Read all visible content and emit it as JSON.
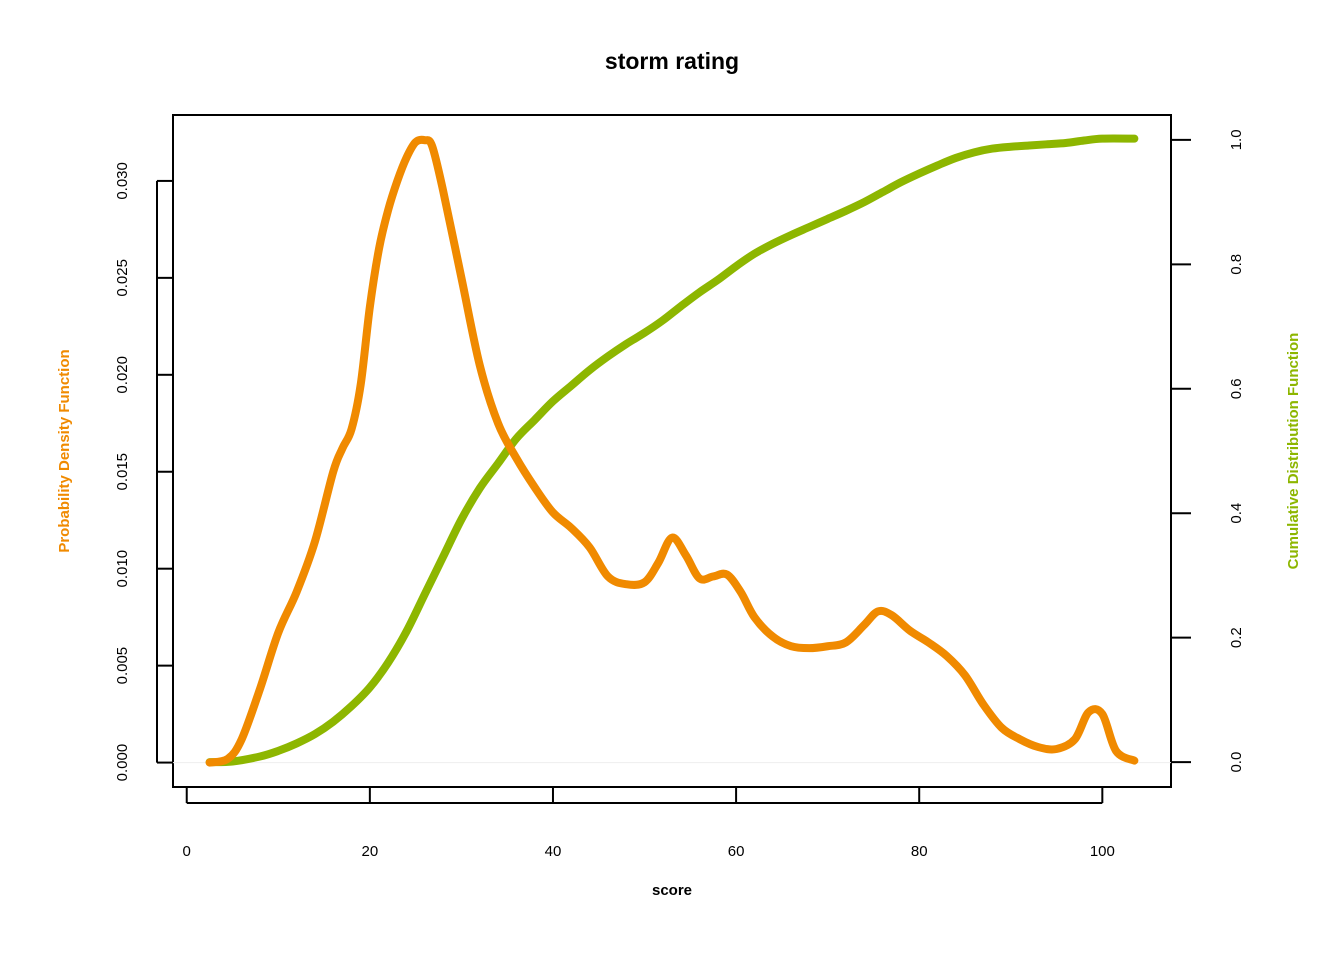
{
  "chart_data": {
    "type": "line",
    "title": "storm rating",
    "xlabel": "score",
    "ylabel_left": "Probability Density Function",
    "ylabel_right": "Cumulative Distribution Function",
    "xlim": [
      -1.5,
      107.5
    ],
    "ylim_left": [
      -0.00126,
      0.0334
    ],
    "ylim_right": [
      -0.04,
      1.04
    ],
    "x_ticks": [
      "0",
      "20",
      "40",
      "60",
      "80",
      "100"
    ],
    "x_tick_values": [
      0,
      20,
      40,
      60,
      80,
      100
    ],
    "y_left_ticks": [
      "0.000",
      "0.005",
      "0.010",
      "0.015",
      "0.020",
      "0.025",
      "0.030"
    ],
    "y_left_tick_values": [
      0,
      0.005,
      0.01,
      0.015,
      0.02,
      0.025,
      0.03
    ],
    "y_right_ticks": [
      "0.0",
      "0.2",
      "0.4",
      "0.6",
      "0.8",
      "1.0"
    ],
    "y_right_tick_values": [
      0,
      0.2,
      0.4,
      0.6,
      0.8,
      1.0
    ],
    "colors": {
      "pdf": "#F08A00",
      "cdf": "#8DB600",
      "axis": "#000000",
      "zero_line": "#eeeeee"
    },
    "series": [
      {
        "axis": "left",
        "color": "#F08A00",
        "x": [
          2.5,
          4.5,
          6,
          8,
          10,
          12,
          14,
          16,
          17,
          18,
          19,
          20,
          21,
          22,
          23,
          24,
          25,
          26,
          26.8,
          28,
          30,
          32,
          34,
          36,
          38,
          40,
          42,
          44,
          46,
          48,
          50,
          51.5,
          53,
          54.5,
          56,
          57.5,
          59,
          60.5,
          62,
          64,
          66,
          68,
          70,
          72,
          74,
          75.5,
          77,
          79,
          81,
          83,
          85,
          87,
          89,
          91,
          93,
          95,
          97,
          98.5,
          100,
          101.5,
          103.5
        ],
        "y": [
          0,
          0.0002,
          0.0012,
          0.0038,
          0.0067,
          0.0088,
          0.0114,
          0.015,
          0.0162,
          0.0172,
          0.0195,
          0.0235,
          0.0265,
          0.0285,
          0.03,
          0.0312,
          0.032,
          0.0321,
          0.0318,
          0.0295,
          0.025,
          0.0205,
          0.0175,
          0.0157,
          0.0142,
          0.0129,
          0.0121,
          0.0111,
          0.0096,
          0.0092,
          0.0093,
          0.0103,
          0.0116,
          0.0107,
          0.0095,
          0.0096,
          0.0097,
          0.0088,
          0.0075,
          0.0065,
          0.006,
          0.0059,
          0.006,
          0.0062,
          0.0071,
          0.0078,
          0.0076,
          0.0068,
          0.0062,
          0.0055,
          0.0045,
          0.003,
          0.0018,
          0.0012,
          0.0008,
          0.0007,
          0.0012,
          0.0026,
          0.0025,
          0.0006,
          0.0001
        ]
      },
      {
        "axis": "right",
        "color": "#8DB600",
        "x": [
          2.5,
          5,
          8,
          10,
          12,
          14,
          16,
          18,
          20,
          22,
          24,
          26,
          28,
          30,
          32,
          34,
          36,
          38,
          40,
          42,
          44,
          46,
          48,
          50,
          52,
          54,
          56,
          58,
          60,
          62,
          64,
          66,
          68,
          70,
          72,
          74,
          76,
          78,
          80,
          82,
          84,
          86,
          88,
          90,
          92,
          94,
          96,
          98,
          100,
          103.5
        ],
        "y": [
          0,
          0.001,
          0.009,
          0.018,
          0.03,
          0.045,
          0.065,
          0.09,
          0.12,
          0.16,
          0.21,
          0.27,
          0.33,
          0.39,
          0.44,
          0.48,
          0.52,
          0.55,
          0.58,
          0.605,
          0.63,
          0.652,
          0.672,
          0.69,
          0.71,
          0.733,
          0.755,
          0.775,
          0.797,
          0.817,
          0.833,
          0.847,
          0.86,
          0.873,
          0.886,
          0.9,
          0.916,
          0.932,
          0.946,
          0.959,
          0.971,
          0.98,
          0.986,
          0.989,
          0.991,
          0.993,
          0.995,
          0.999,
          1.002,
          1.002
        ]
      }
    ]
  }
}
